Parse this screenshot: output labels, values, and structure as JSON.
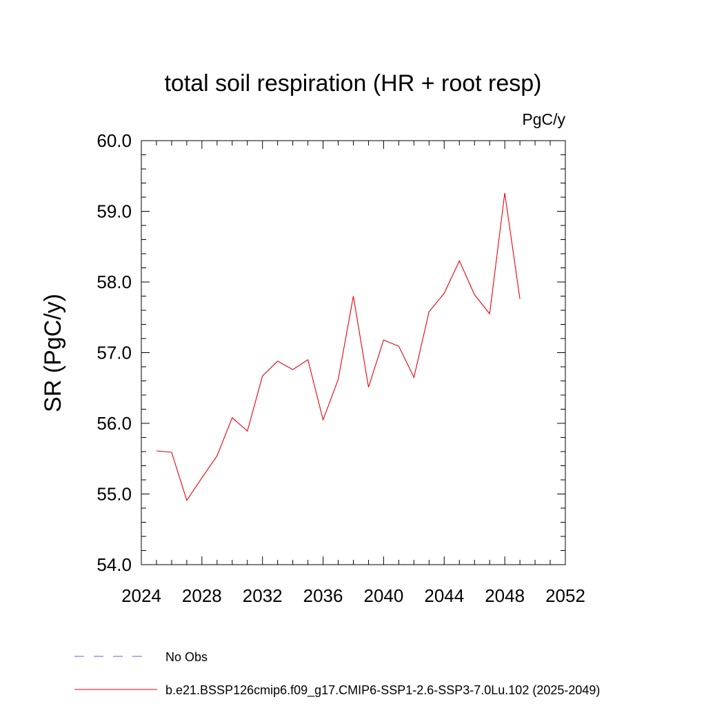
{
  "chart_data": {
    "type": "line",
    "title": "total soil respiration (HR + root resp)",
    "units": "PgC/y",
    "ylabel": "SR  (PgC/y)",
    "xlabel": "",
    "xlim": [
      2024,
      2052
    ],
    "ylim": [
      54.0,
      60.0
    ],
    "x_ticks": [
      "2024",
      "2028",
      "2032",
      "2036",
      "2040",
      "2044",
      "2048",
      "2052"
    ],
    "y_ticks": [
      "54.0",
      "55.0",
      "56.0",
      "57.0",
      "58.0",
      "59.0",
      "60.0"
    ],
    "grid": false,
    "legend_placement": "bottom-left",
    "series": [
      {
        "name": "b.e21.BSSP126cmip6.f09_g17.CMIP6-SSP1-2.6-SSP3-7.0Lu.102 (2025-2049)",
        "color": "#e8000b",
        "line_style": "solid",
        "x": [
          2025,
          2026,
          2027,
          2028,
          2029,
          2030,
          2031,
          2032,
          2033,
          2034,
          2035,
          2036,
          2037,
          2038,
          2039,
          2040,
          2041,
          2042,
          2043,
          2044,
          2045,
          2046,
          2047,
          2048,
          2049
        ],
        "values": [
          55.61,
          55.59,
          54.91,
          55.23,
          55.54,
          56.08,
          55.89,
          56.67,
          56.88,
          56.76,
          56.9,
          56.05,
          56.62,
          57.8,
          56.51,
          57.18,
          57.09,
          56.65,
          57.58,
          57.84,
          58.3,
          57.82,
          57.55,
          59.26,
          57.76
        ]
      }
    ],
    "legend": [
      {
        "label": "No Obs",
        "color": "#6a5acd",
        "line_style": "dashed"
      },
      {
        "label": "b.e21.BSSP126cmip6.f09_g17.CMIP6-SSP1-2.6-SSP3-7.0Lu.102 (2025-2049)",
        "color": "#e8000b",
        "line_style": "solid"
      }
    ]
  }
}
